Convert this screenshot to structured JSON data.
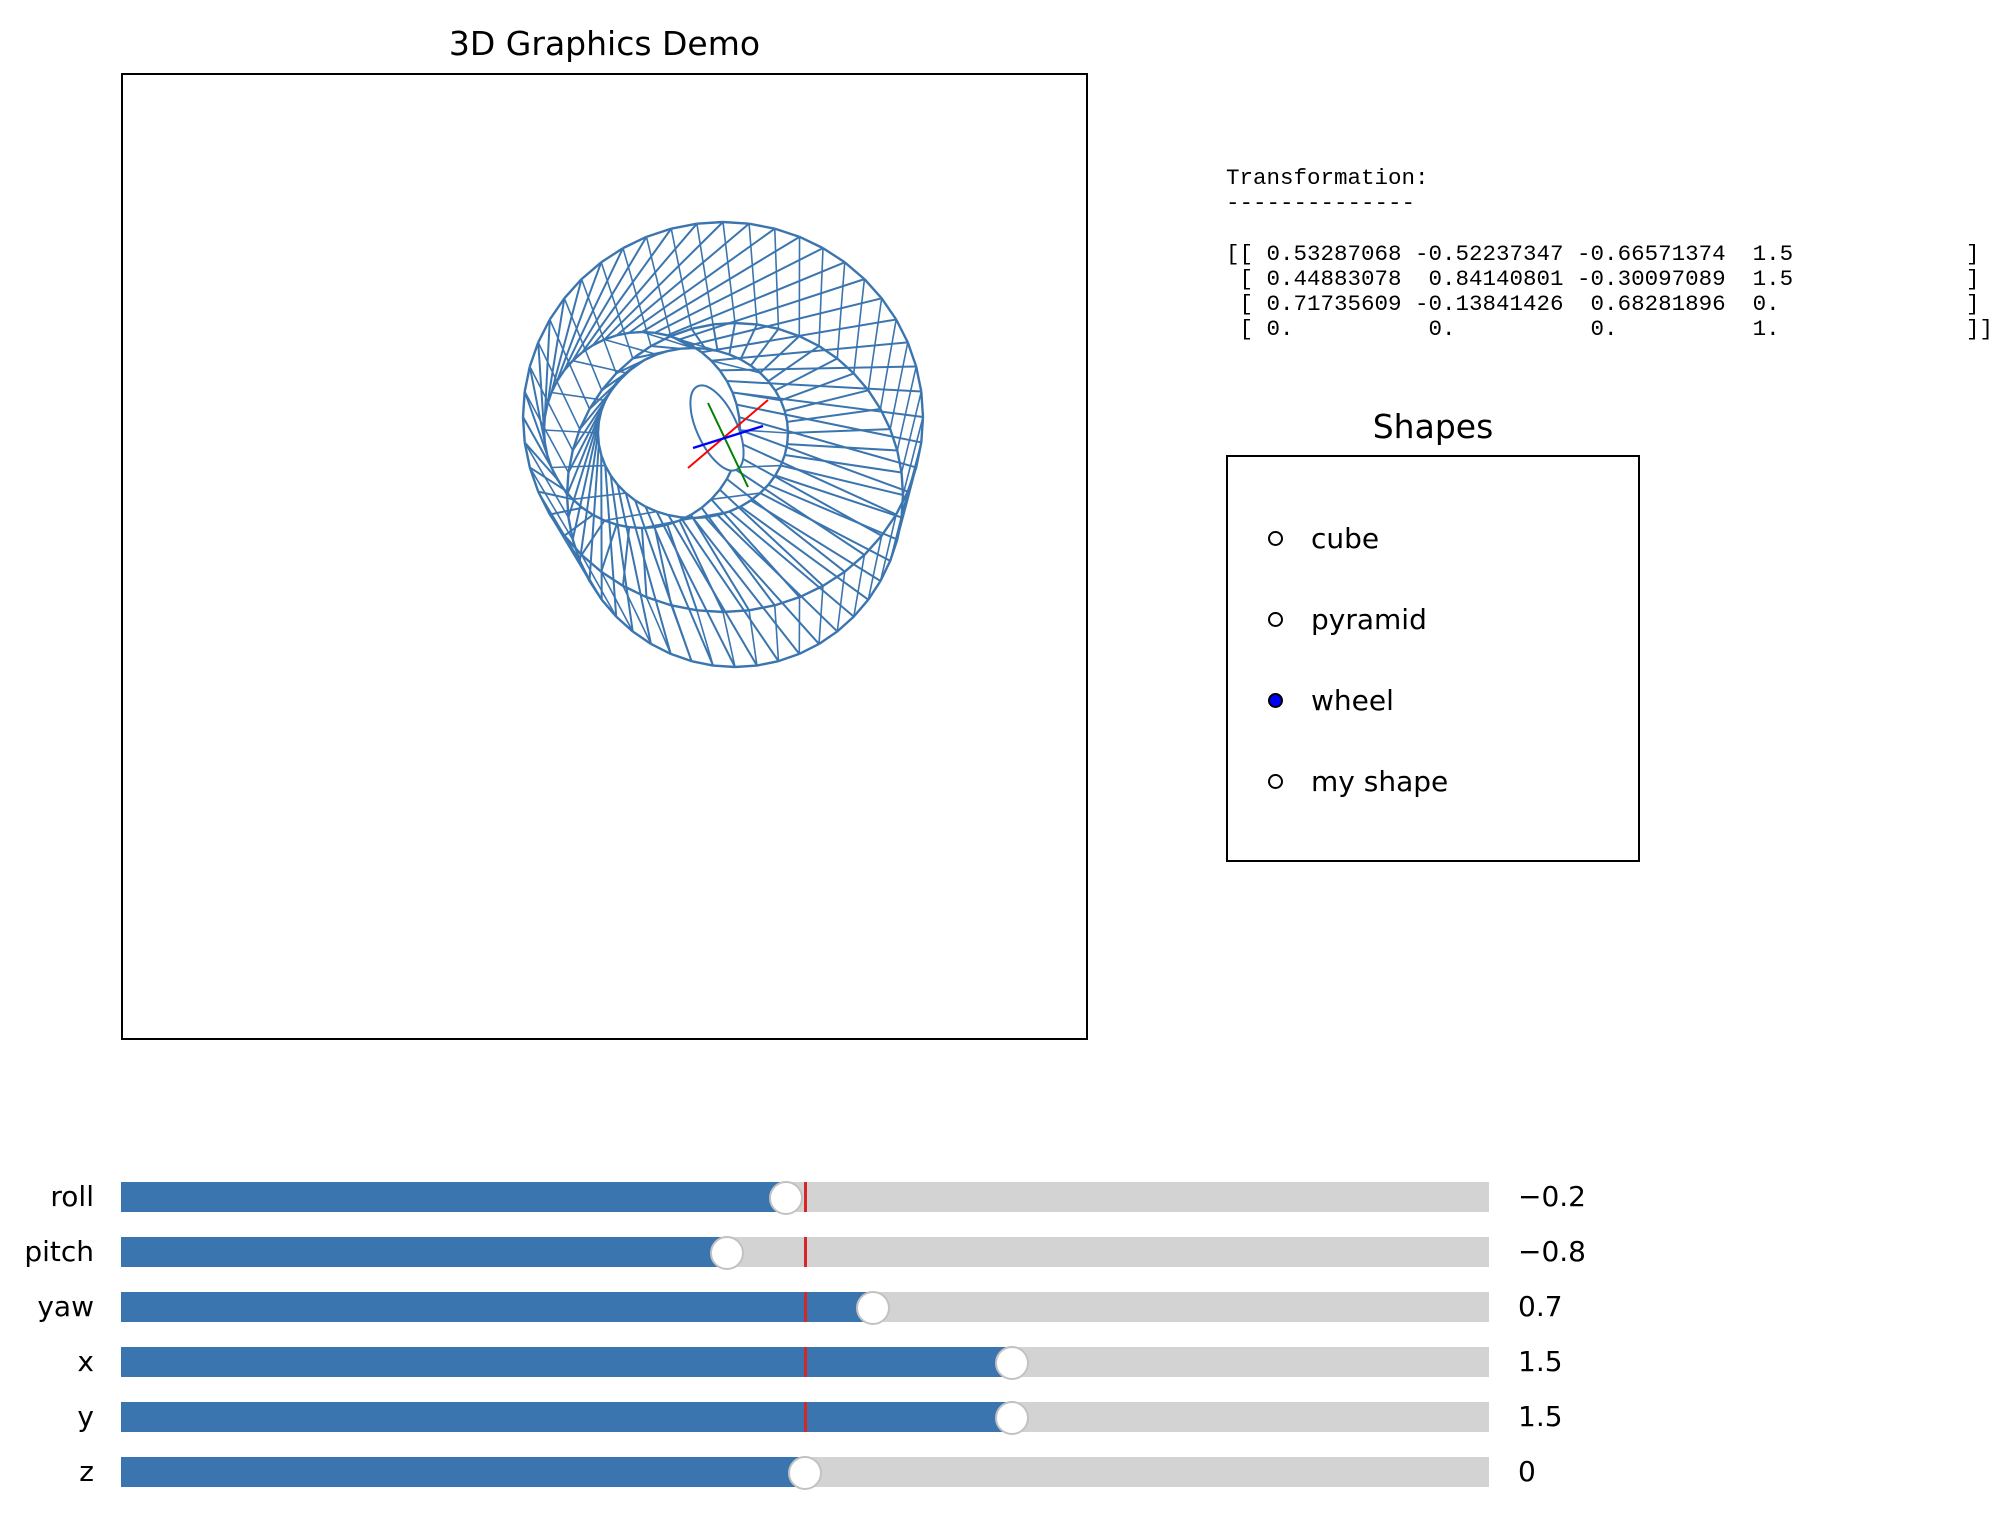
{
  "title": "3D Graphics Demo",
  "transformation": {
    "heading": "Transformation:",
    "rule": "--------------",
    "rows": [
      "[[ 0.53287068 -0.52237347 -0.66571374  1.5",
      " [ 0.44883078  0.84140801 -0.30097089  1.5",
      " [ 0.71735609 -0.13841426  0.68281896  0.",
      " [ 0.          0.          0.          1."
    ],
    "closers": [
      "]",
      "]",
      "]",
      "]]"
    ]
  },
  "shapes": {
    "title": "Shapes",
    "options": [
      {
        "label": "cube",
        "selected": false
      },
      {
        "label": "pyramid",
        "selected": false
      },
      {
        "label": "wheel",
        "selected": true
      },
      {
        "label": "my shape",
        "selected": false
      }
    ],
    "selected_color": "#0000ff"
  },
  "sliders": [
    {
      "name": "roll",
      "value_text": "−0.2",
      "fill_fraction": 0.486,
      "initial_fraction": 0.5
    },
    {
      "name": "pitch",
      "value_text": "−0.8",
      "fill_fraction": 0.443,
      "initial_fraction": 0.5
    },
    {
      "name": "yaw",
      "value_text": "0.7",
      "fill_fraction": 0.55,
      "initial_fraction": 0.5
    },
    {
      "name": "x",
      "value_text": "1.5",
      "fill_fraction": 0.651,
      "initial_fraction": 0.5
    },
    {
      "name": "y",
      "value_text": "1.5",
      "fill_fraction": 0.651,
      "initial_fraction": 0.5
    },
    {
      "name": "z",
      "value_text": "0",
      "fill_fraction": 0.5,
      "initial_fraction": 0.5
    }
  ],
  "colors": {
    "wireframe": "#3b75af",
    "slider_fill": "#3b75af",
    "slider_track": "#d3d3d3",
    "slider_initial_marker": "#d62728",
    "axis_x": "#ff0000",
    "axis_y": "#008000",
    "axis_z": "#0000ff"
  }
}
